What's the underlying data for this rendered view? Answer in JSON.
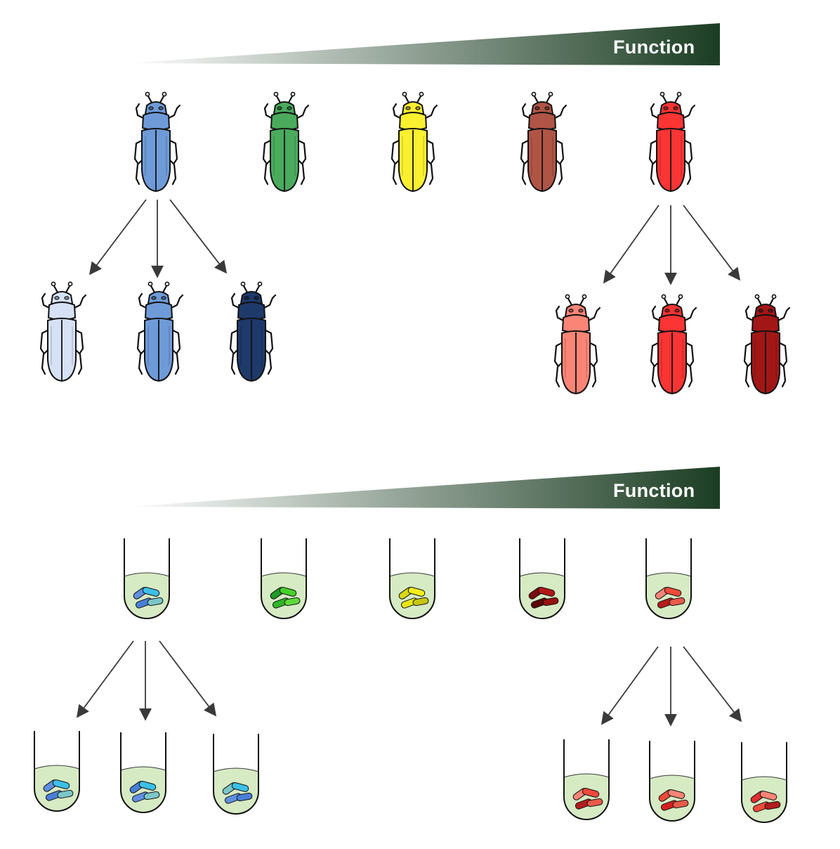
{
  "top_panel": {
    "gradient_label": "Function",
    "row": [
      {
        "name": "blue",
        "body": "#6e9bd8"
      },
      {
        "name": "green",
        "body": "#4aab5c"
      },
      {
        "name": "yellow",
        "body": "#fbf030"
      },
      {
        "name": "brown",
        "body": "#b05545"
      },
      {
        "name": "red",
        "body": "#fb3434"
      }
    ],
    "left_children": [
      {
        "name": "pale-blue",
        "body": "#d6e1f5"
      },
      {
        "name": "blue",
        "body": "#6e9bd8"
      },
      {
        "name": "navy",
        "body": "#1d3a6b"
      }
    ],
    "right_children": [
      {
        "name": "salmon",
        "body": "#fa8576"
      },
      {
        "name": "red",
        "body": "#fb3434"
      },
      {
        "name": "dark-red",
        "body": "#a31616"
      }
    ]
  },
  "bottom_panel": {
    "gradient_label": "Function",
    "row": [
      {
        "name": "blue-culture",
        "cells": [
          "#5f8fe0",
          "#3cc0e8",
          "#4a7fd8",
          "#7bc6c8"
        ]
      },
      {
        "name": "green-culture",
        "cells": [
          "#1f9a22",
          "#46d12a",
          "#2fb52a",
          "#61d83b"
        ]
      },
      {
        "name": "yellow-culture",
        "cells": [
          "#d9d814",
          "#f2ef1a",
          "#e6e515",
          "#c6c612"
        ]
      },
      {
        "name": "dark-red-culture",
        "cells": [
          "#7a0c0c",
          "#b31717",
          "#5c0606",
          "#9a1010"
        ]
      },
      {
        "name": "red-culture",
        "cells": [
          "#fa8576",
          "#f04a3a",
          "#b31d1d",
          "#e85a4a"
        ]
      }
    ],
    "left_children": [
      {
        "name": "blue-culture-a",
        "cells": [
          "#5f8fe0",
          "#3cc0e8",
          "#4a7fd8",
          "#7bc6c8"
        ]
      },
      {
        "name": "blue-culture-b",
        "cells": [
          "#4a7fd8",
          "#3cc0e8",
          "#5f8fe0",
          "#7bc6c8"
        ]
      },
      {
        "name": "blue-culture-c",
        "cells": [
          "#7bc6c8",
          "#3cc0e8",
          "#5f8fe0",
          "#4a7fd8"
        ]
      }
    ],
    "right_children": [
      {
        "name": "red-culture-a",
        "cells": [
          "#fa8576",
          "#f04a3a",
          "#b31d1d",
          "#e85a4a"
        ]
      },
      {
        "name": "red-culture-b",
        "cells": [
          "#f04a3a",
          "#fa8576",
          "#d22020",
          "#e85a4a"
        ]
      },
      {
        "name": "red-culture-c",
        "cells": [
          "#e03030",
          "#fa8576",
          "#f04a3a",
          "#b31d1d"
        ]
      }
    ]
  },
  "colors": {
    "gradient_dark": "#1b3d23",
    "arrow": "#3a3a3a",
    "medium": "#d6eac4",
    "outline": "#000000"
  }
}
